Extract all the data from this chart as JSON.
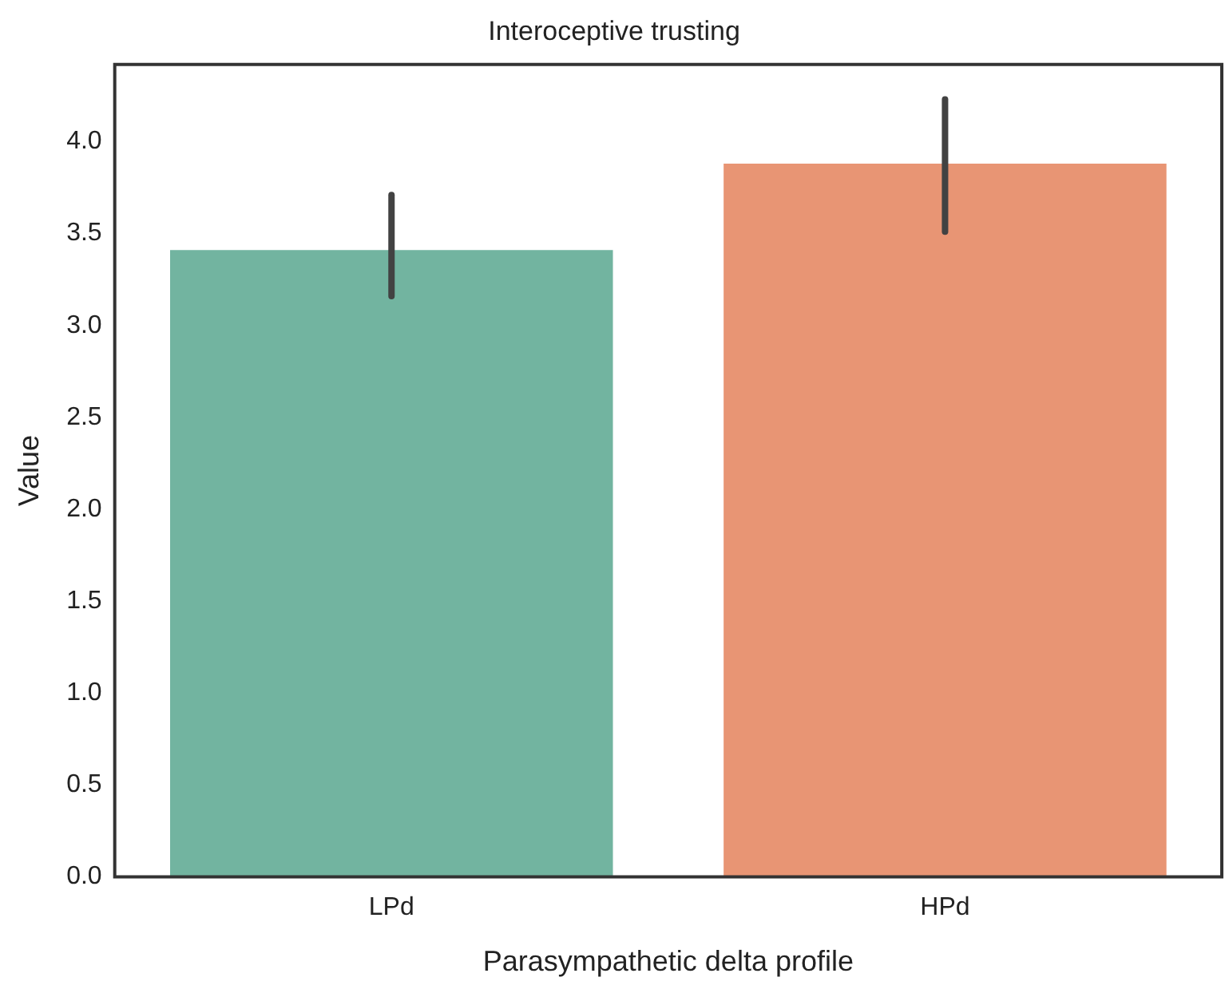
{
  "chart_data": {
    "type": "bar",
    "title": "Interoceptive trusting",
    "xlabel": "Parasympathetic delta profile",
    "ylabel": "Value",
    "categories": [
      "LPd",
      "HPd"
    ],
    "values": [
      3.41,
      3.88
    ],
    "colors": [
      "#72b4a0",
      "#e89574"
    ],
    "errors": [
      [
        3.16,
        3.71
      ],
      [
        3.51,
        4.23
      ]
    ],
    "ylim": [
      0,
      4.42
    ],
    "yticks": [
      {
        "value": 0,
        "label": "0.0"
      },
      {
        "value": 0.5,
        "label": "0.5"
      },
      {
        "value": 1,
        "label": "1.0"
      },
      {
        "value": 1.5,
        "label": "1.5"
      },
      {
        "value": 2,
        "label": "2.0"
      },
      {
        "value": 2.5,
        "label": "2.5"
      },
      {
        "value": 3,
        "label": "3.0"
      },
      {
        "value": 3.5,
        "label": "3.5"
      },
      {
        "value": 4,
        "label": "4.0"
      }
    ],
    "grid": false,
    "legend": false
  }
}
